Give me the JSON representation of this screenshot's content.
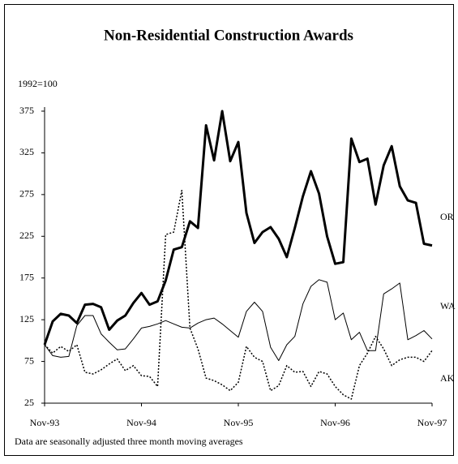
{
  "chart_data": {
    "type": "line",
    "title": "Non-Residential Construction Awards",
    "y_label": "1992=100",
    "note": "Data are seasonally adjusted three month moving averages",
    "categories": [
      "Nov-93",
      null,
      null,
      null,
      null,
      null,
      null,
      null,
      null,
      null,
      null,
      null,
      "Nov-94",
      null,
      null,
      null,
      null,
      null,
      null,
      null,
      null,
      null,
      null,
      null,
      "Nov-95",
      null,
      null,
      null,
      null,
      null,
      null,
      null,
      null,
      null,
      null,
      null,
      "Nov-96",
      null,
      null,
      null,
      null,
      null,
      null,
      null,
      null,
      null,
      null,
      null,
      "Nov-97"
    ],
    "ylim": [
      25,
      375
    ],
    "yticks": [
      25,
      75,
      125,
      175,
      225,
      275,
      325,
      375
    ],
    "grid": false,
    "series": [
      {
        "name": "OR",
        "color": "#000000",
        "style": "bold",
        "values": [
          95,
          123,
          132,
          130,
          121,
          143,
          144,
          140,
          113,
          124,
          130,
          145,
          157,
          143,
          147,
          172,
          209,
          212,
          243,
          235,
          358,
          316,
          375,
          315,
          338,
          253,
          217,
          230,
          236,
          222,
          200,
          235,
          273,
          303,
          276,
          225,
          192,
          194,
          342,
          314,
          318,
          263,
          310,
          333,
          285,
          268,
          265,
          216,
          214
        ]
      },
      {
        "name": "WA",
        "color": "#000000",
        "style": "thin",
        "values": [
          95,
          82,
          80,
          81,
          118,
          130,
          130,
          108,
          98,
          89,
          90,
          102,
          115,
          117,
          120,
          124,
          120,
          116,
          115,
          121,
          125,
          127,
          120,
          112,
          104,
          135,
          146,
          135,
          92,
          76,
          95,
          105,
          144,
          165,
          173,
          170,
          125,
          133,
          101,
          110,
          88,
          88,
          156,
          162,
          169,
          101,
          106,
          112,
          102
        ]
      },
      {
        "name": "AK",
        "color": "#000000",
        "style": "dotted",
        "values": [
          95,
          85,
          93,
          87,
          95,
          62,
          60,
          65,
          72,
          78,
          64,
          70,
          58,
          57,
          45,
          227,
          230,
          280,
          115,
          90,
          55,
          52,
          47,
          40,
          50,
          93,
          80,
          75,
          40,
          46,
          70,
          62,
          63,
          45,
          63,
          60,
          45,
          35,
          30,
          70,
          85,
          105,
          90,
          70,
          77,
          80,
          80,
          75,
          88
        ]
      }
    ]
  }
}
